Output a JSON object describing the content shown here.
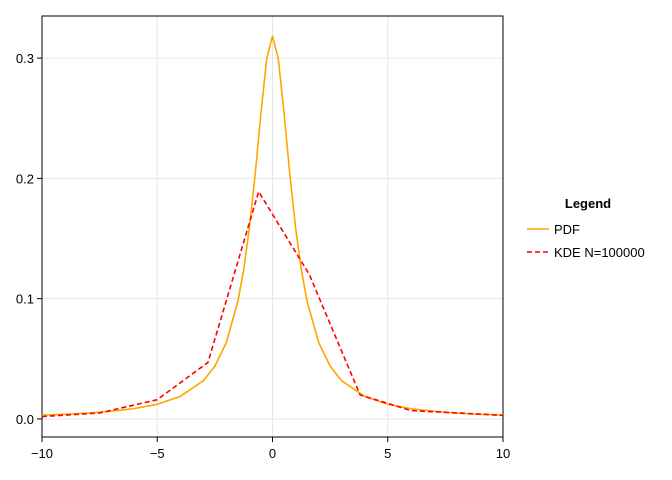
{
  "chart_data": {
    "type": "line",
    "title": "",
    "xlabel": "",
    "ylabel": "",
    "xlim": [
      -10,
      10
    ],
    "ylim": [
      -0.015,
      0.335
    ],
    "xticks": [
      -10,
      -5,
      0,
      5,
      10
    ],
    "xtick_labels": [
      "−10",
      "−5",
      "0",
      "5",
      "10"
    ],
    "yticks": [
      0.0,
      0.1,
      0.2,
      0.3
    ],
    "ytick_labels": [
      "0.0",
      "0.1",
      "0.2",
      "0.3"
    ],
    "grid": true,
    "legend": {
      "title": "Legend",
      "placement": "right"
    },
    "series": [
      {
        "name": "PDF",
        "style": "solid",
        "color": "#FFA500",
        "x": [
          -10,
          -9,
          -8,
          -7,
          -6,
          -5,
          -4,
          -3,
          -2.5,
          -2,
          -1.5,
          -1.25,
          -1,
          -0.75,
          -0.5,
          -0.25,
          0,
          0.25,
          0.5,
          0.75,
          1,
          1.25,
          1.5,
          2,
          2.5,
          3,
          4,
          5,
          6,
          7,
          8,
          9,
          10
        ],
        "y": [
          0.0032,
          0.0039,
          0.0049,
          0.0064,
          0.0086,
          0.0122,
          0.0187,
          0.0318,
          0.0439,
          0.0637,
          0.0979,
          0.1241,
          0.1592,
          0.2037,
          0.2546,
          0.2996,
          0.3183,
          0.2996,
          0.2546,
          0.2037,
          0.1592,
          0.1241,
          0.0979,
          0.0637,
          0.0439,
          0.0318,
          0.0187,
          0.0122,
          0.0086,
          0.0064,
          0.0049,
          0.0039,
          0.0032
        ]
      },
      {
        "name": "KDE N=100000",
        "style": "dashed",
        "color": "#FF0000",
        "x": [
          -10,
          -7.5,
          -5,
          -2.8,
          -0.6,
          1.6,
          3.8,
          6,
          8,
          10
        ],
        "y": [
          0.002,
          0.005,
          0.016,
          0.047,
          0.189,
          0.12,
          0.02,
          0.007,
          0.005,
          0.003
        ]
      }
    ]
  }
}
